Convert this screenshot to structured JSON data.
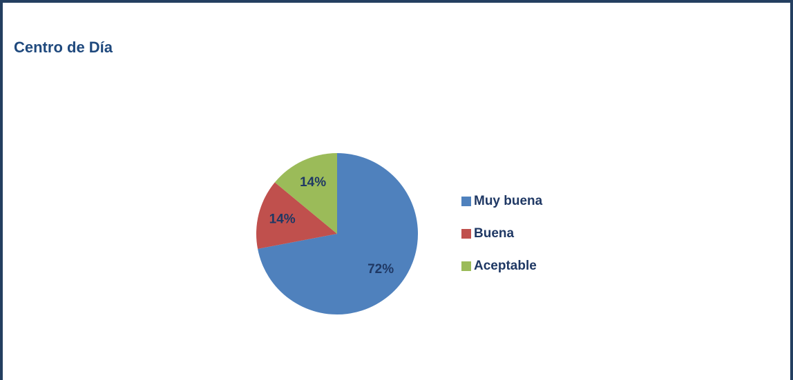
{
  "chart_data": {
    "type": "pie",
    "title": "Centro de Día",
    "categories": [
      "Muy buena",
      "Buena",
      "Aceptable"
    ],
    "values": [
      72,
      14,
      14
    ],
    "value_labels": [
      "72%",
      "14%",
      "14%"
    ],
    "colors": [
      "#4f81bd",
      "#c0504d",
      "#9bbb59"
    ]
  }
}
